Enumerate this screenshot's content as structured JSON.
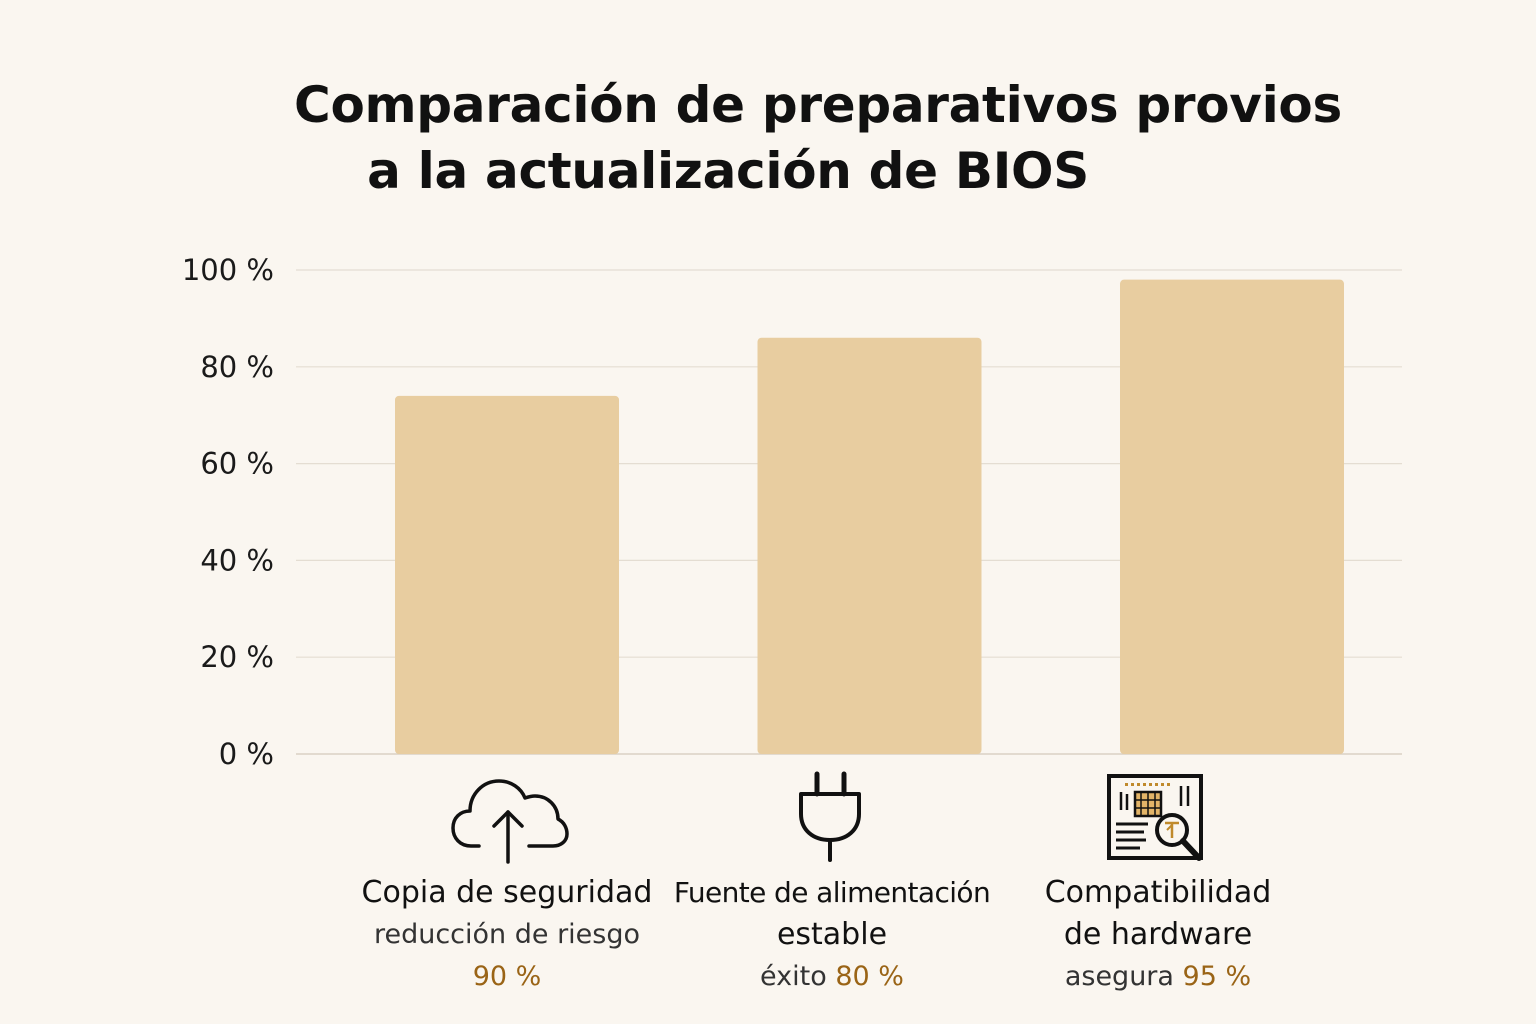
{
  "title_line1": "Comparación de preparativos provios",
  "title_line2": "a la actualización de BIOS",
  "colors": {
    "background": "#faf6f0",
    "bar": "#e8cda0",
    "grid": "#e4ddd2",
    "accent": "#9a6416",
    "text": "#111111"
  },
  "chart_data": {
    "type": "bar",
    "title": "Comparación de preparativos provios a la actualización de BIOS",
    "xlabel": "",
    "ylabel": "",
    "ylim": [
      0,
      100
    ],
    "yticks": [
      0,
      20,
      40,
      60,
      80,
      100
    ],
    "ytick_labels": [
      "0 %",
      "20 %",
      "40 %",
      "60 %",
      "80 %",
      "100 %"
    ],
    "grid": true,
    "categories": [
      "Copia de seguridad",
      "Fuente de alimentación estable",
      "Compatibilidad de hardware"
    ],
    "values": [
      74,
      86,
      98
    ],
    "annotations": [
      {
        "line1": "Copia de seguridad",
        "line2": "",
        "desc": "reducción de riesgo",
        "value": "90 %",
        "icon": "cloud-upload-icon"
      },
      {
        "line1": "Fuente de alimentación",
        "line2": "estable",
        "desc": "éxito",
        "value": "80 %",
        "icon": "power-plug-icon"
      },
      {
        "line1": "Compatibilidad",
        "line2": "de hardware",
        "desc": "asegura",
        "value": "95 %",
        "icon": "hardware-inspect-icon"
      }
    ]
  }
}
